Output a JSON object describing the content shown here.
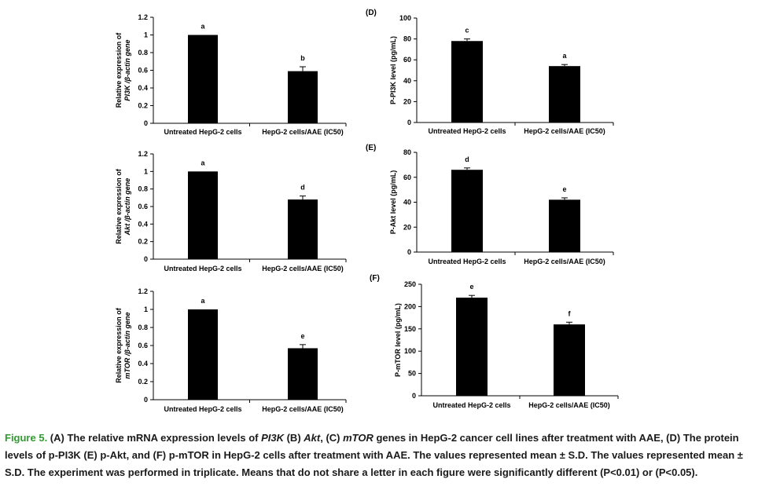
{
  "chart_data": [
    {
      "id": "A",
      "panel_label": "",
      "type": "bar",
      "categories": [
        "Untreated HepG-2 cells",
        "HepG-2 cells/AAE (IC50)"
      ],
      "values": [
        1.0,
        0.59
      ],
      "errors": [
        0.0,
        0.05
      ],
      "letters": [
        "a",
        "b"
      ],
      "ylabel_line1": "Relative expression of",
      "ylabel_line2": "PI3K /β-actin gene",
      "ylim": [
        0,
        1.2
      ],
      "yticks": [
        "0",
        "0.2",
        "0.4",
        "0.6",
        "0.8",
        "1",
        "1.2"
      ]
    },
    {
      "id": "B",
      "panel_label": "",
      "type": "bar",
      "categories": [
        "Untreated HepG-2 cells",
        "HepG-2 cells/AAE (IC50)"
      ],
      "values": [
        1.0,
        0.68
      ],
      "errors": [
        0.0,
        0.04
      ],
      "letters": [
        "a",
        "d"
      ],
      "ylabel_line1": "Relative expression of",
      "ylabel_line2": "Akt /β-actin gene",
      "ylim": [
        0,
        1.2
      ],
      "yticks": [
        "0",
        "0.2",
        "0.4",
        "0.6",
        "0.8",
        "1",
        "1.2"
      ]
    },
    {
      "id": "C",
      "panel_label": "",
      "type": "bar",
      "categories": [
        "Untreated HepG-2 cells",
        "HepG-2 cells/AAE (IC50)"
      ],
      "values": [
        1.0,
        0.57
      ],
      "errors": [
        0.0,
        0.04
      ],
      "letters": [
        "a",
        "e"
      ],
      "ylabel_line1": "Relative expression of",
      "ylabel_line2": "mTOR /β-actin gene",
      "ylim": [
        0,
        1.2
      ],
      "yticks": [
        "0",
        "0.2",
        "0.4",
        "0.6",
        "0.8",
        "1",
        "1.2"
      ]
    },
    {
      "id": "D",
      "panel_label": "(D)",
      "type": "bar",
      "categories": [
        "Untreated HepG-2 cells",
        "HepG-2 cells/AAE (IC50)"
      ],
      "values": [
        78,
        54
      ],
      "errors": [
        2,
        1.5
      ],
      "letters": [
        "c",
        "a"
      ],
      "ylabel_line1": "P-PI3K level (pg/mL)",
      "ylabel_line2": "",
      "ylim": [
        0,
        100
      ],
      "yticks": [
        "0",
        "20",
        "40",
        "60",
        "80",
        "100"
      ]
    },
    {
      "id": "E",
      "panel_label": "(E)",
      "type": "bar",
      "categories": [
        "Untreated HepG-2 cells",
        "HepG-2 cells/AAE (IC50)"
      ],
      "values": [
        66,
        42
      ],
      "errors": [
        1.5,
        1.5
      ],
      "letters": [
        "d",
        "e"
      ],
      "ylabel_line1": "P-Akt level (pg/mL)",
      "ylabel_line2": "",
      "ylim": [
        0,
        80
      ],
      "yticks": [
        "0",
        "20",
        "40",
        "60",
        "80"
      ]
    },
    {
      "id": "F",
      "panel_label": "(F)",
      "type": "bar",
      "categories": [
        "Untreated HepG-2 cells",
        "HepG-2 cells/AAE (IC50)"
      ],
      "values": [
        220,
        160
      ],
      "errors": [
        5,
        5
      ],
      "letters": [
        "e",
        "f"
      ],
      "ylabel_line1": "P-mTOR level (pg/mL)",
      "ylabel_line2": "",
      "ylim": [
        0,
        250
      ],
      "yticks": [
        "0",
        "50",
        "100",
        "150",
        "200",
        "250"
      ]
    }
  ],
  "caption": {
    "lead": "Figure 5.",
    "segments": [
      {
        "text": " (A) The relative mRNA expression levels of ",
        "italic": false
      },
      {
        "text": "PI3K",
        "italic": true
      },
      {
        "text": " (B) ",
        "italic": false
      },
      {
        "text": "Akt",
        "italic": true
      },
      {
        "text": ", (C) ",
        "italic": false
      },
      {
        "text": "mTOR",
        "italic": true
      },
      {
        "text": " genes in HepG-2 cancer cell lines after treatment with AAE, (D) The protein levels of p-PI3K (E) p-Akt, and (F) p-mTOR in HepG-2 cells after treatment with AAE. The values represented mean ± S.D. The values represented mean ± S.D. The experiment was performed in triplicate. Means that do not share a letter in each figure were significantly different (P<0.01) or (P<0.05).",
        "italic": false
      }
    ]
  }
}
